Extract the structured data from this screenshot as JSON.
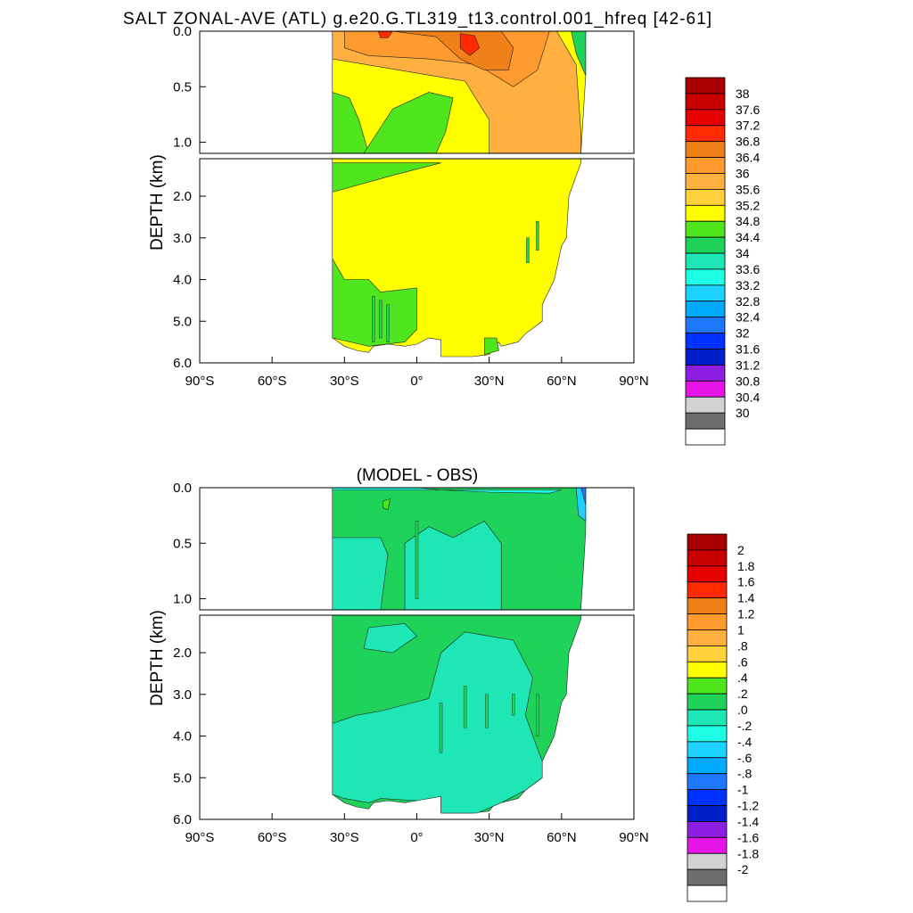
{
  "chart_data": [
    {
      "type": "heatmap",
      "title": "SALT ZONAL-AVE (ATL) g.e20.G.TL319_t13.control.001_hfreq [42-61]",
      "ylabel": "DEPTH (km)",
      "xlabel": "",
      "x_ticks": [
        "90°S",
        "60°S",
        "30°S",
        "0°",
        "30°N",
        "60°N",
        "90°N"
      ],
      "y_ticks_upper": [
        "0.0",
        "0.5",
        "1.0"
      ],
      "y_ticks_lower": [
        "2.0",
        "3.0",
        "4.0",
        "5.0",
        "6.0"
      ],
      "xlim": [
        -90,
        90
      ],
      "ylim_km": [
        6.0,
        0.0
      ],
      "colorbar": {
        "labels": [
          "38",
          "37.6",
          "37.2",
          "36.8",
          "36.4",
          "36",
          "35.6",
          "35.2",
          "34.8",
          "34.4",
          "34",
          "33.6",
          "33.2",
          "32.8",
          "32.4",
          "32",
          "31.6",
          "31.2",
          "30.8",
          "30.4",
          "30"
        ],
        "colors": [
          "#a80000",
          "#c80000",
          "#e80000",
          "#ff2a00",
          "#f08018",
          "#ff9a2e",
          "#ffb040",
          "#ffd23c",
          "#ffff00",
          "#50e61e",
          "#1ed25a",
          "#1ee6b4",
          "#1effe6",
          "#1ed2ff",
          "#00aaff",
          "#1e78ff",
          "#0032ff",
          "#001ec8",
          "#8c1ee1",
          "#e614e6",
          "#d2d2d2",
          "#6e6e6e",
          "#ffffff"
        ]
      }
    },
    {
      "type": "heatmap",
      "title": "(MODEL - OBS)",
      "ylabel": "DEPTH (km)",
      "xlabel": "",
      "x_ticks": [
        "90°S",
        "60°S",
        "30°S",
        "0°",
        "30°N",
        "60°N",
        "90°N"
      ],
      "y_ticks_upper": [
        "0.0",
        "0.5",
        "1.0"
      ],
      "y_ticks_lower": [
        "2.0",
        "3.0",
        "4.0",
        "5.0",
        "6.0"
      ],
      "xlim": [
        -90,
        90
      ],
      "ylim_km": [
        6.0,
        0.0
      ],
      "colorbar": {
        "labels": [
          "2",
          "1.8",
          "1.6",
          "1.4",
          "1.2",
          "1",
          ".8",
          ".6",
          ".4",
          ".2",
          ".0",
          "-.2",
          "-.4",
          "-.6",
          "-.8",
          "-1",
          "-1.2",
          "-1.4",
          "-1.6",
          "-1.8",
          "-2"
        ],
        "colors": [
          "#a80000",
          "#c80000",
          "#e80000",
          "#ff2a00",
          "#f08018",
          "#ff9a2e",
          "#ffb040",
          "#ffd23c",
          "#ffff00",
          "#50e61e",
          "#1ed25a",
          "#1ee6b4",
          "#1effe6",
          "#1ed2ff",
          "#00aaff",
          "#1e78ff",
          "#0032ff",
          "#001ec8",
          "#8c1ee1",
          "#e614e6",
          "#d2d2d2",
          "#6e6e6e",
          "#ffffff"
        ]
      }
    }
  ]
}
